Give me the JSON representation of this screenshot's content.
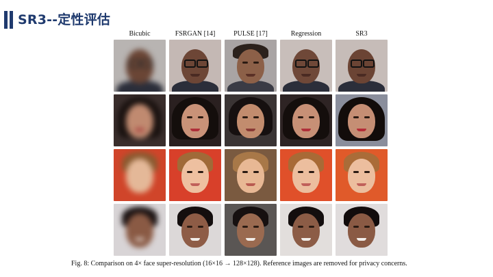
{
  "header": {
    "title": "SR3--定性评估",
    "accent_color": "#1f3a6e"
  },
  "figure": {
    "columns": [
      {
        "label": "Bicubic"
      },
      {
        "label": "FSRGAN [14]"
      },
      {
        "label": "PULSE [17]"
      },
      {
        "label": "Regression"
      },
      {
        "label": "SR3"
      }
    ],
    "caption": "Fig. 8: Comparison on 4× face super-resolution (16×16 → 128×128). Reference images are removed for privacy concerns."
  }
}
